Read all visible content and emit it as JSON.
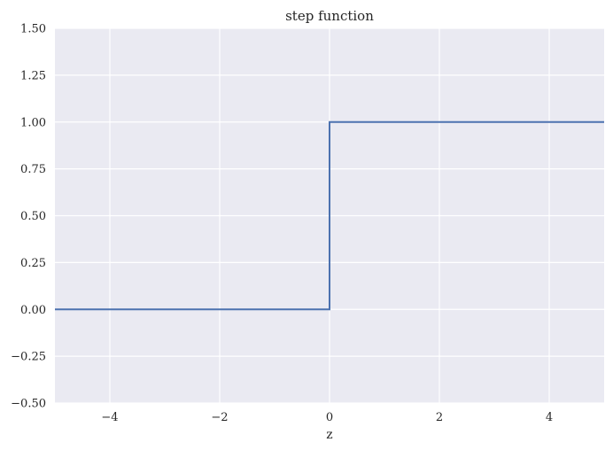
{
  "chart_data": {
    "type": "line",
    "title": "step function",
    "xlabel": "z",
    "ylabel": "",
    "xlim": [
      -5,
      5
    ],
    "ylim": [
      -0.5,
      1.5
    ],
    "xticks": [
      -4,
      -2,
      0,
      2,
      4
    ],
    "xtick_labels": [
      "−4",
      "−2",
      "0",
      "2",
      "4"
    ],
    "yticks": [
      -0.5,
      -0.25,
      0,
      0.25,
      0.5,
      0.75,
      1.0,
      1.25,
      1.5
    ],
    "ytick_labels": [
      "−0.50",
      "−0.25",
      "0.00",
      "0.25",
      "0.50",
      "0.75",
      "1.00",
      "1.25",
      "1.50"
    ],
    "grid": true,
    "series": [
      {
        "x": [
          -5,
          0,
          0,
          5
        ],
        "y": [
          0,
          0,
          1,
          1
        ]
      }
    ],
    "colors": {
      "background": "#eaeaf2",
      "line": "#4c72b0",
      "grid": "#ffffff"
    }
  }
}
